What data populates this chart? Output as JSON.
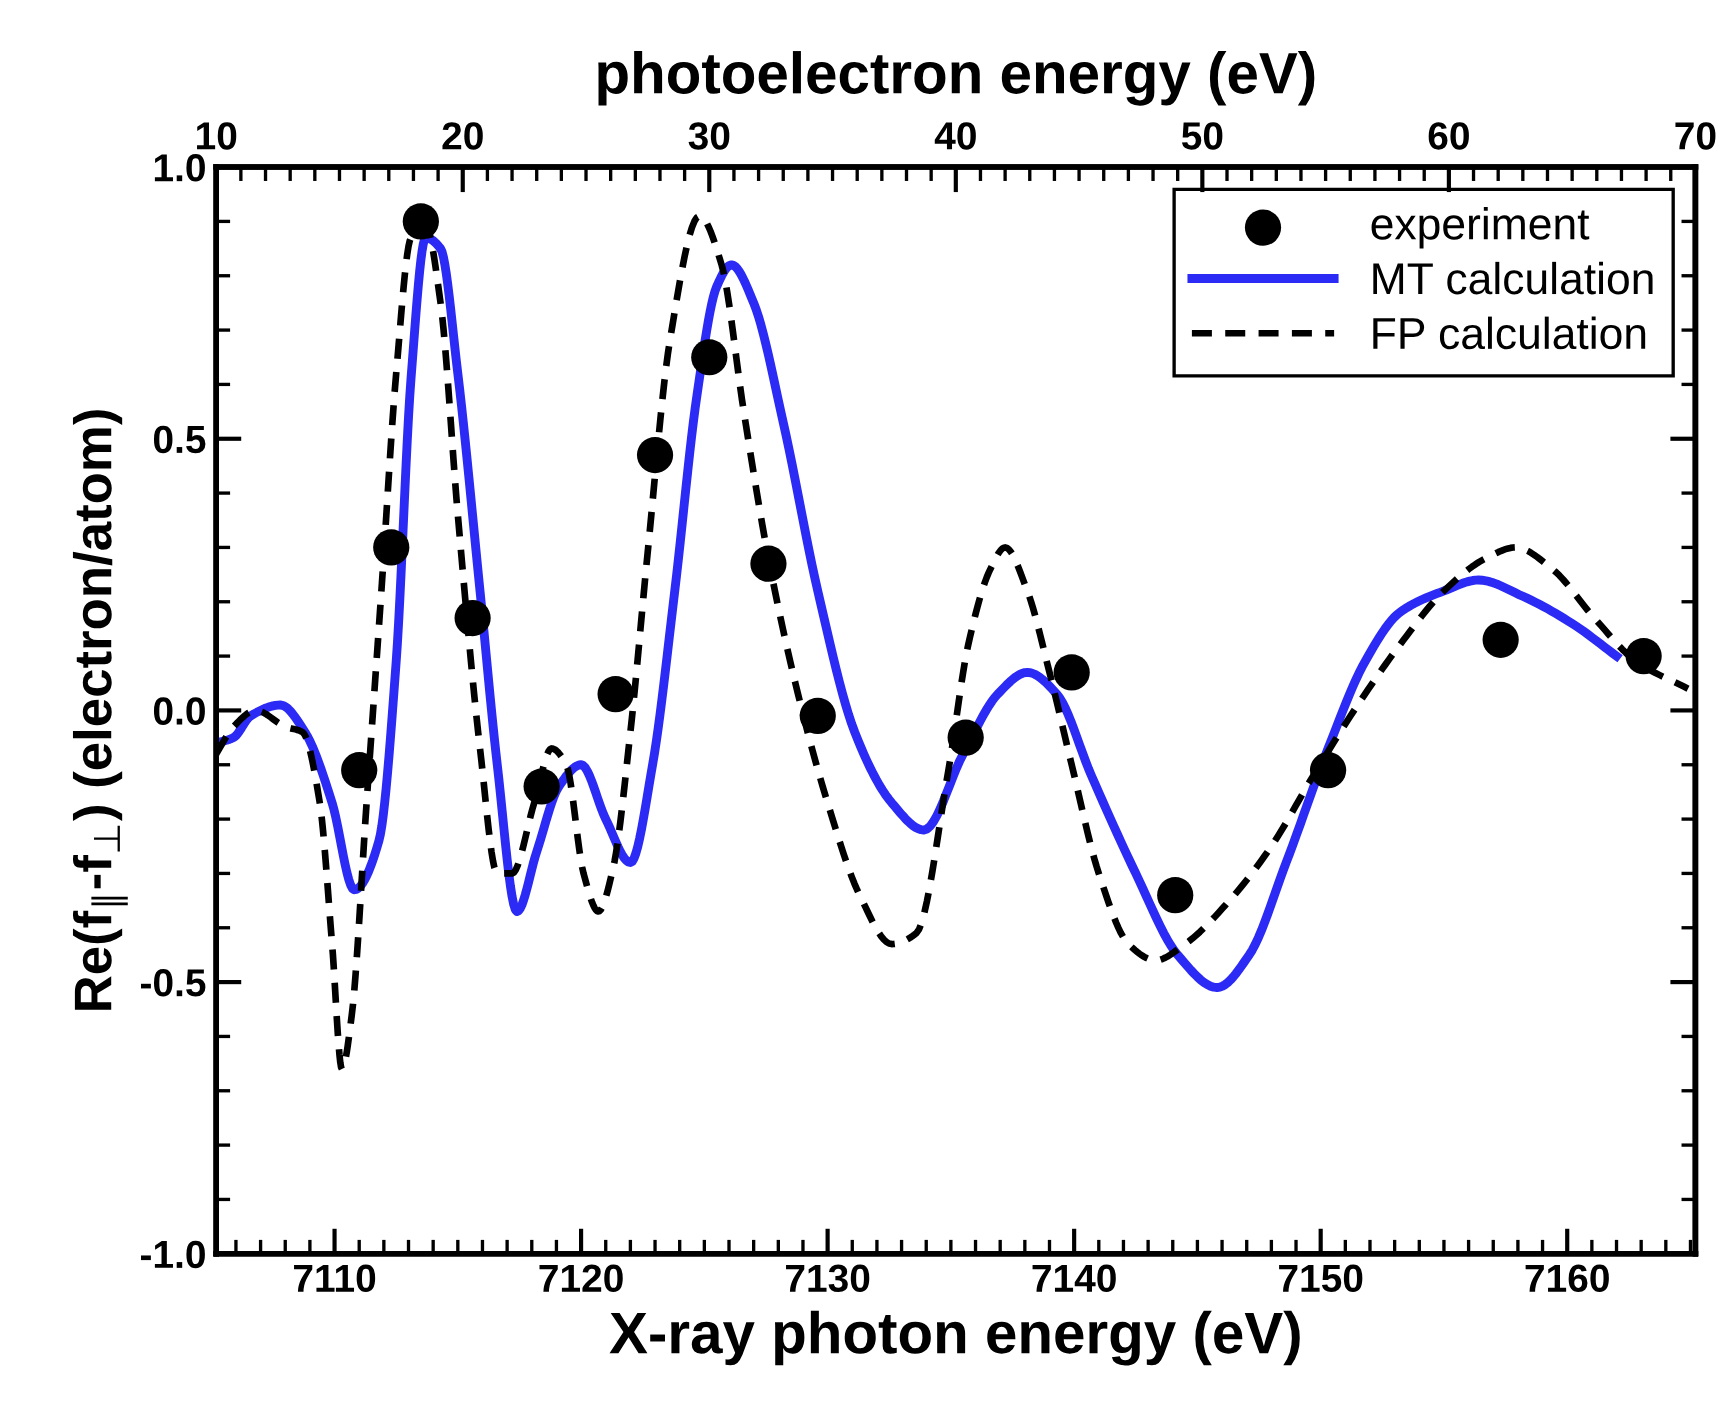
{
  "chart_data": {
    "type": "line",
    "xlabel": "X-ray photon energy (eV)",
    "x2label": "photoelectron energy (eV)",
    "ylabel": "Re(f$_{∥}$-f$_{⊥}$) (electron/atom)",
    "xlim": [
      7105.2,
      7165.2
    ],
    "xticks": [
      7110,
      7120,
      7130,
      7140,
      7150,
      7160
    ],
    "x2lim": [
      10,
      70
    ],
    "x2ticks": [
      10,
      20,
      30,
      40,
      50,
      60,
      70
    ],
    "ylim": [
      -1.0,
      1.0
    ],
    "yticks": [
      {
        "value": -1.0,
        "label": "-1.0"
      },
      {
        "value": -0.5,
        "label": "-0.5"
      },
      {
        "value": 0.0,
        "label": "0.0"
      },
      {
        "value": 0.5,
        "label": "0.5"
      },
      {
        "value": 1.0,
        "label": "1.0"
      }
    ],
    "grid": false,
    "legend": "top right",
    "series": [
      {
        "name": "experiment",
        "type": "scatter",
        "marker": "circle",
        "color": "#000000",
        "x": [
          7111.0,
          7112.3,
          7113.5,
          7115.6,
          7118.4,
          7121.4,
          7123.0,
          7125.2,
          7127.6,
          7129.6,
          7135.6,
          7139.9,
          7144.1,
          7150.3,
          7157.3,
          7163.1
        ],
        "values": [
          -0.11,
          0.3,
          0.9,
          0.17,
          -0.14,
          0.03,
          0.47,
          0.65,
          0.27,
          -0.01,
          -0.05,
          0.07,
          -0.34,
          -0.11,
          0.13,
          0.1
        ]
      },
      {
        "name": "MT calculation",
        "line_style": "solid",
        "color": "#2b2bf5",
        "x": [
          7105.2,
          7105.9,
          7106.6,
          7107.8,
          7108.8,
          7109.9,
          7110.8,
          7111.8,
          7112.5,
          7113.1,
          7113.7,
          7114.3,
          7115.0,
          7115.9,
          7116.6,
          7117.4,
          7118.2,
          7119.1,
          7120.0,
          7121.0,
          7122.0,
          7122.9,
          7123.8,
          7124.7,
          7125.5,
          7126.1,
          7127.0,
          7128.2,
          7129.6,
          7131.1,
          7132.6,
          7133.9,
          7135.5,
          7136.9,
          7138.1,
          7139.3,
          7140.7,
          7142.5,
          7144.2,
          7145.8,
          7147.1,
          7148.6,
          7150.3,
          7151.8,
          7153.2,
          7155.0,
          7156.4,
          7158.2,
          7160.2,
          7162.0
        ],
        "values": [
          -0.06,
          -0.05,
          -0.01,
          0.01,
          -0.04,
          -0.17,
          -0.33,
          -0.24,
          0.09,
          0.61,
          0.87,
          0.85,
          0.62,
          0.22,
          -0.1,
          -0.37,
          -0.26,
          -0.14,
          -0.1,
          -0.2,
          -0.28,
          -0.1,
          0.22,
          0.58,
          0.78,
          0.82,
          0.75,
          0.53,
          0.22,
          -0.04,
          -0.17,
          -0.22,
          -0.08,
          0.03,
          0.07,
          0.03,
          -0.12,
          -0.3,
          -0.45,
          -0.51,
          -0.45,
          -0.28,
          -0.07,
          0.09,
          0.18,
          0.22,
          0.24,
          0.21,
          0.16,
          0.1
        ]
      },
      {
        "name": "FP calculation",
        "line_style": "dashed",
        "color": "#000000",
        "x": [
          7105.2,
          7105.9,
          7106.8,
          7108.0,
          7108.7,
          7109.4,
          7109.9,
          7110.3,
          7110.7,
          7111.3,
          7111.9,
          7112.5,
          7113.1,
          7113.7,
          7114.3,
          7115.0,
          7115.9,
          7116.6,
          7117.2,
          7118.1,
          7118.8,
          7119.4,
          7120.1,
          7120.7,
          7121.3,
          7122.0,
          7122.7,
          7123.6,
          7124.8,
          7125.7,
          7126.6,
          7127.6,
          7128.8,
          7130.0,
          7131.3,
          7132.6,
          7133.6,
          7134.9,
          7135.7,
          7136.6,
          7137.2,
          7138.1,
          7139.0,
          7139.9,
          7141.0,
          7142.2,
          7143.3,
          7144.5,
          7146.3,
          7148.0,
          7149.7,
          7151.5,
          7153.2,
          7155.0,
          7156.7,
          7157.9,
          7159.4,
          7161.1,
          7162.8,
          7164.9
        ],
        "values": [
          -0.08,
          -0.03,
          0.0,
          -0.03,
          -0.04,
          -0.17,
          -0.43,
          -0.66,
          -0.56,
          -0.17,
          0.22,
          0.62,
          0.87,
          0.89,
          0.75,
          0.36,
          -0.07,
          -0.3,
          -0.3,
          -0.17,
          -0.07,
          -0.1,
          -0.3,
          -0.37,
          -0.29,
          -0.04,
          0.29,
          0.68,
          0.91,
          0.82,
          0.55,
          0.28,
          0.03,
          -0.17,
          -0.34,
          -0.43,
          -0.41,
          -0.11,
          0.12,
          0.26,
          0.3,
          0.22,
          0.07,
          -0.1,
          -0.3,
          -0.43,
          -0.46,
          -0.43,
          -0.35,
          -0.25,
          -0.12,
          0.01,
          0.12,
          0.22,
          0.28,
          0.3,
          0.26,
          0.17,
          0.09,
          0.04
        ]
      }
    ]
  }
}
